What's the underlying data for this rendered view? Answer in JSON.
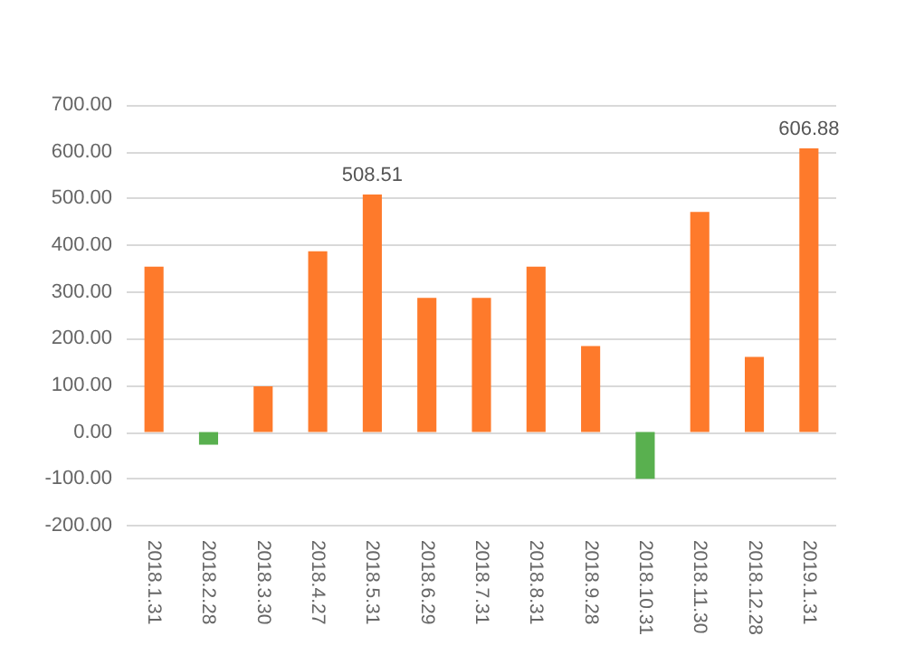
{
  "chart_data": {
    "type": "bar",
    "categories": [
      "2018.1.31",
      "2018.2.28",
      "2018.3.30",
      "2018.4.27",
      "2018.5.31",
      "2018.6.29",
      "2018.7.31",
      "2018.8.31",
      "2018.9.28",
      "2018.10.31",
      "2018.11.30",
      "2018.12.28",
      "2019.1.31"
    ],
    "values": [
      354,
      -27,
      98,
      387,
      508.51,
      287,
      287,
      354,
      184,
      -100,
      471,
      161,
      606.88
    ],
    "colors": [
      "#fe7a2b",
      "#59b04f",
      "#fe7a2b",
      "#fe7a2b",
      "#fe7a2b",
      "#fe7a2b",
      "#fe7a2b",
      "#fe7a2b",
      "#fe7a2b",
      "#59b04f",
      "#fe7a2b",
      "#fe7a2b",
      "#fe7a2b"
    ],
    "value_labels": [
      null,
      null,
      null,
      null,
      "508.51",
      null,
      null,
      null,
      null,
      null,
      null,
      null,
      "606.88"
    ],
    "ylim": [
      -200,
      700
    ],
    "yticks": [
      {
        "value": -200,
        "label": "-200.00"
      },
      {
        "value": -100,
        "label": "-100.00"
      },
      {
        "value": 0,
        "label": "0.00"
      },
      {
        "value": 100,
        "label": "100.00"
      },
      {
        "value": 200,
        "label": "200.00"
      },
      {
        "value": 300,
        "label": "300.00"
      },
      {
        "value": 400,
        "label": "400.00"
      },
      {
        "value": 500,
        "label": "500.00"
      },
      {
        "value": 600,
        "label": "600.00"
      },
      {
        "value": 700,
        "label": "700.00"
      }
    ],
    "grid": "y"
  }
}
